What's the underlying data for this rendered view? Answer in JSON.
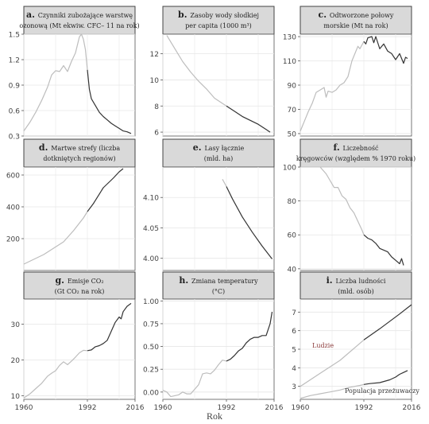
{
  "x_axis_title": "Rok",
  "colors": {
    "early": "#bdbdbd",
    "late": "#333333",
    "header_bg": "#d9d9d9",
    "header_border": "#444444",
    "annotation": "#8b3a3a"
  },
  "chart_data": [
    {
      "type": "line",
      "letter": "a.",
      "title_line1": "Czynniki zubożające warstwę",
      "title_line2": "ozonową (Mt ekwiw. CFC– 11 na rok)",
      "ylim": [
        0.3,
        1.5
      ],
      "yticks": [
        "0.3",
        "0.6",
        "0.9",
        "1.2",
        "1.5"
      ],
      "ytick_values": [
        0.3,
        0.6,
        0.9,
        1.2,
        1.5
      ],
      "xlim": [
        1960,
        2016
      ],
      "xticks": [],
      "split_year": 1992,
      "series": [
        {
          "x": [
            1960,
            1963,
            1966,
            1969,
            1972,
            1974,
            1976,
            1978,
            1980,
            1982,
            1984,
            1986,
            1988,
            1989,
            1990,
            1991,
            1992,
            1993,
            1994,
            1996,
            1998,
            2000,
            2002,
            2004,
            2006,
            2008,
            2010,
            2012,
            2014
          ],
          "y": [
            0.36,
            0.46,
            0.58,
            0.72,
            0.88,
            1.02,
            1.07,
            1.06,
            1.13,
            1.06,
            1.18,
            1.28,
            1.47,
            1.5,
            1.44,
            1.32,
            1.08,
            0.85,
            0.74,
            0.66,
            0.58,
            0.53,
            0.49,
            0.45,
            0.42,
            0.39,
            0.36,
            0.35,
            0.33
          ]
        }
      ]
    },
    {
      "type": "line",
      "letter": "b.",
      "title_line1": "Zasoby wody słodkiej",
      "title_line2": "per capita (1000 m³)",
      "ylim": [
        5.7,
        13.5
      ],
      "yticks": [
        "6",
        "8",
        "10",
        "12"
      ],
      "ytick_values": [
        6,
        8,
        10,
        12
      ],
      "xlim": [
        1960,
        2016
      ],
      "xticks": [],
      "split_year": 1992,
      "series": [
        {
          "x": [
            1962,
            1966,
            1970,
            1974,
            1978,
            1982,
            1986,
            1990,
            1992,
            1996,
            2000,
            2004,
            2008,
            2012,
            2014
          ],
          "y": [
            13.4,
            12.4,
            11.4,
            10.6,
            9.9,
            9.3,
            8.6,
            8.2,
            8.0,
            7.6,
            7.2,
            6.9,
            6.6,
            6.2,
            6.0
          ]
        }
      ]
    },
    {
      "type": "line",
      "letter": "c.",
      "title_line1": "Odtworzone połowy",
      "title_line2": "morskie (Mt na rok)",
      "ylim": [
        48,
        132
      ],
      "yticks": [
        "50",
        "70",
        "90",
        "110",
        "130"
      ],
      "ytick_values": [
        50,
        70,
        90,
        110,
        130
      ],
      "xlim": [
        1960,
        2016
      ],
      "xticks": [],
      "split_year": 1992,
      "series": [
        {
          "x": [
            1960,
            1962,
            1964,
            1966,
            1968,
            1970,
            1972,
            1973,
            1974,
            1976,
            1978,
            1980,
            1982,
            1984,
            1986,
            1988,
            1989,
            1990,
            1992,
            1993,
            1994,
            1996,
            1997,
            1998,
            2000,
            2002,
            2004,
            2006,
            2008,
            2010,
            2012,
            2013,
            2014
          ],
          "y": [
            52,
            60,
            68,
            75,
            84,
            86,
            88,
            80,
            85,
            84,
            86,
            90,
            92,
            97,
            110,
            118,
            122,
            120,
            126,
            124,
            129,
            130,
            125,
            130,
            120,
            124,
            118,
            116,
            111,
            116,
            108,
            113,
            112
          ]
        }
      ]
    },
    {
      "type": "line",
      "letter": "d.",
      "title_line1": "Martwe strefy (liczba",
      "title_line2": "dotkniętych regionów)",
      "ylim": [
        0,
        650
      ],
      "yticks": [
        "200",
        "400",
        "600"
      ],
      "ytick_values": [
        200,
        400,
        600
      ],
      "xlim": [
        1960,
        2016
      ],
      "xticks": [],
      "split_year": 1992,
      "series": [
        {
          "x": [
            1960,
            1965,
            1970,
            1975,
            1980,
            1985,
            1990,
            1992,
            1995,
            2000,
            2005,
            2008,
            2010
          ],
          "y": [
            40,
            70,
            100,
            140,
            180,
            250,
            330,
            370,
            420,
            520,
            580,
            620,
            640
          ]
        }
      ]
    },
    {
      "type": "line",
      "letter": "e.",
      "title_line1": "Lasy łącznie",
      "title_line2": "(mld. ha)",
      "ylim": [
        3.98,
        4.15
      ],
      "yticks": [
        "4.00",
        "4.05",
        "4.10"
      ],
      "ytick_values": [
        4.0,
        4.05,
        4.1
      ],
      "xlim": [
        1960,
        2016
      ],
      "xticks": [],
      "split_year": 1992,
      "series": [
        {
          "x": [
            1990,
            1992,
            1995,
            2000,
            2005,
            2010,
            2015
          ],
          "y": [
            4.13,
            4.118,
            4.098,
            4.068,
            4.043,
            4.02,
            3.999
          ]
        }
      ]
    },
    {
      "type": "line",
      "letter": "f.",
      "title_line1": "Liczebność",
      "title_line2": "kręgowców (względem % 1970 roku)",
      "ylim": [
        39,
        100
      ],
      "yticks": [
        "40",
        "60",
        "80",
        "100"
      ],
      "ytick_values": [
        40,
        60,
        80,
        100
      ],
      "xlim": [
        1960,
        2016
      ],
      "xticks": [],
      "split_year": 1992,
      "series": [
        {
          "x": [
            1970,
            1973,
            1975,
            1977,
            1979,
            1981,
            1983,
            1985,
            1987,
            1989,
            1991,
            1992,
            1994,
            1996,
            1998,
            2000,
            2002,
            2004,
            2006,
            2008,
            2010,
            2011,
            2012
          ],
          "y": [
            100,
            96,
            92,
            88,
            88,
            83,
            81,
            76,
            73,
            68,
            63,
            60,
            58,
            57,
            55,
            52,
            51,
            50,
            47,
            45,
            43,
            46,
            42
          ]
        }
      ]
    },
    {
      "type": "line",
      "letter": "g.",
      "title_line1": "Emisje CO₂",
      "title_line2": "(Gt CO₂ na rok)",
      "ylim": [
        9,
        37
      ],
      "yticks": [
        "10",
        "20",
        "30"
      ],
      "ytick_values": [
        10,
        20,
        30
      ],
      "xlim": [
        1960,
        2016
      ],
      "xticks": [
        "1960",
        "1992",
        "2016"
      ],
      "xtick_values": [
        1960,
        1992,
        2016
      ],
      "split_year": 1992,
      "series": [
        {
          "x": [
            1960,
            1963,
            1966,
            1969,
            1972,
            1974,
            1976,
            1978,
            1980,
            1982,
            1984,
            1986,
            1988,
            1990,
            1992,
            1994,
            1996,
            1998,
            2000,
            2002,
            2004,
            2006,
            2008,
            2009,
            2010,
            2012,
            2014
          ],
          "y": [
            9.4,
            10.5,
            12,
            13.5,
            15.5,
            16.3,
            17,
            18.5,
            19.5,
            18.7,
            19.7,
            20.8,
            22,
            22.7,
            22.6,
            22.8,
            23.7,
            24,
            24.6,
            25.5,
            28,
            30.5,
            32,
            31.5,
            33.5,
            35,
            35.8
          ]
        }
      ]
    },
    {
      "type": "line",
      "letter": "h.",
      "title_line1": "Zmiana temperatury",
      "title_line2": "(°C)",
      "ylim": [
        -0.08,
        1.02
      ],
      "yticks": [
        "0.00",
        "0.25",
        "0.50",
        "0.75",
        "1.00"
      ],
      "ytick_values": [
        0,
        0.25,
        0.5,
        0.75,
        1.0
      ],
      "xlim": [
        1960,
        2016
      ],
      "xticks": [
        "1960",
        "1992",
        "2016"
      ],
      "xtick_values": [
        1960,
        1992,
        2016
      ],
      "split_year": 1992,
      "series": [
        {
          "x": [
            1960,
            1962,
            1964,
            1966,
            1968,
            1970,
            1972,
            1974,
            1976,
            1978,
            1980,
            1982,
            1984,
            1986,
            1988,
            1990,
            1992,
            1994,
            1996,
            1998,
            2000,
            2002,
            2004,
            2006,
            2008,
            2010,
            2012,
            2014,
            2015
          ],
          "y": [
            0.02,
            0.0,
            -0.05,
            -0.04,
            -0.03,
            0.0,
            -0.02,
            -0.02,
            0.03,
            0.08,
            0.2,
            0.21,
            0.2,
            0.24,
            0.3,
            0.35,
            0.34,
            0.36,
            0.4,
            0.45,
            0.48,
            0.54,
            0.58,
            0.6,
            0.6,
            0.62,
            0.62,
            0.75,
            0.88
          ]
        }
      ]
    },
    {
      "type": "line",
      "letter": "i.",
      "title_line1": "Liczba ludności",
      "title_line2": "(mld. osób)",
      "ylim": [
        2.3,
        7.7
      ],
      "yticks": [
        "3",
        "4",
        "5",
        "6",
        "7"
      ],
      "ytick_values": [
        3,
        4,
        5,
        6,
        7
      ],
      "xlim": [
        1960,
        2016
      ],
      "xticks": [
        "1960",
        "1992",
        "2016"
      ],
      "xtick_values": [
        1960,
        1992,
        2016
      ],
      "split_year": 1992,
      "series": [
        {
          "name": "Ludzie",
          "x": [
            1960,
            1970,
            1980,
            1992,
            2000,
            2010,
            2016
          ],
          "y": [
            3.0,
            3.7,
            4.4,
            5.5,
            6.1,
            6.9,
            7.4
          ]
        },
        {
          "name": "Populacja przeżuwaczy",
          "x": [
            1960,
            1965,
            1970,
            1975,
            1980,
            1985,
            1990,
            1992,
            1995,
            2000,
            2005,
            2008,
            2010,
            2012,
            2014
          ],
          "y": [
            2.35,
            2.5,
            2.6,
            2.7,
            2.8,
            2.95,
            3.05,
            3.1,
            3.15,
            3.2,
            3.35,
            3.5,
            3.65,
            3.75,
            3.85
          ]
        }
      ]
    }
  ]
}
